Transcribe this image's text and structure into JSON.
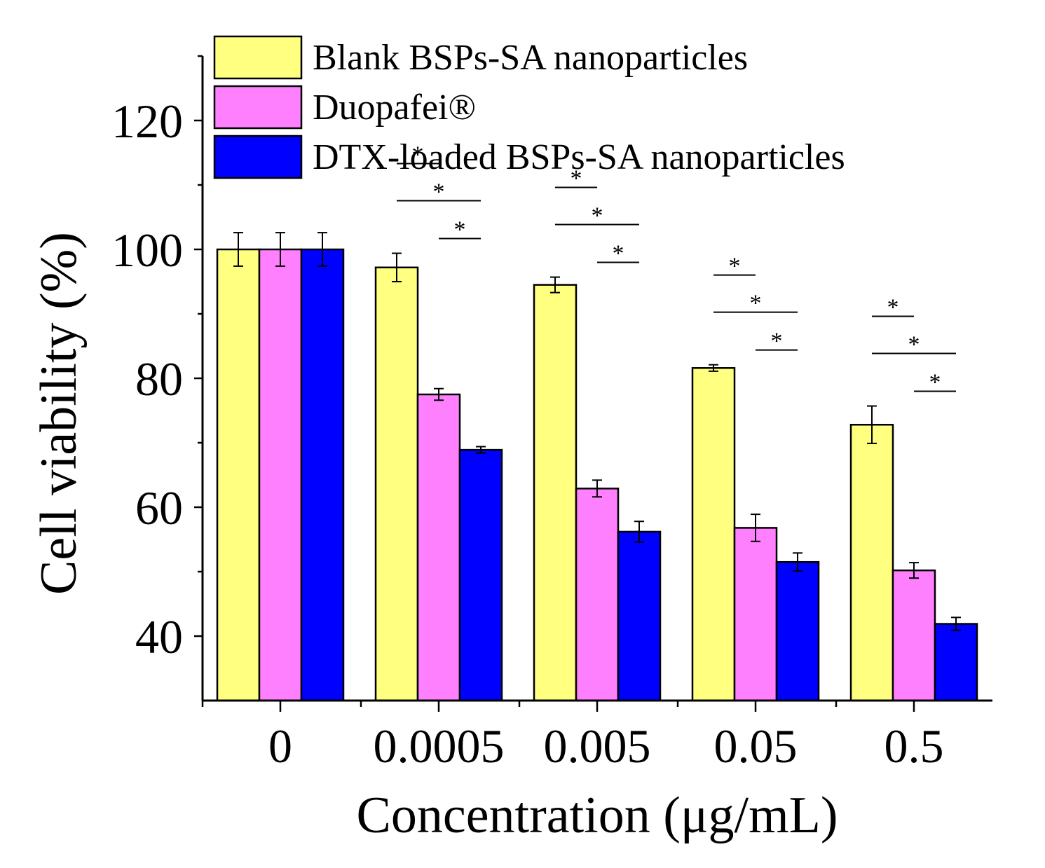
{
  "chart_data": {
    "type": "bar",
    "title": "",
    "xlabel": "Concentration (μg/mL)",
    "ylabel": "Cell viability (%)",
    "ylim": [
      30,
      130
    ],
    "yticks": [
      40,
      60,
      80,
      100,
      120
    ],
    "ytick_labels": [
      "40",
      "60",
      "80",
      "100",
      "120"
    ],
    "grid": false,
    "legend_position": "top",
    "categories": [
      "0",
      "0.0005",
      "0.005",
      "0.05",
      "0.5"
    ],
    "series": [
      {
        "name": "Blank BSPs-SA nanoparticles",
        "color": "#FFFF80",
        "values": [
          100,
          97.2,
          94.5,
          81.6,
          72.8
        ],
        "errors": [
          2.6,
          2.2,
          1.2,
          0.5,
          2.9
        ]
      },
      {
        "name": "Duopafei®",
        "color": "#FF80FF",
        "values": [
          100,
          77.5,
          62.9,
          56.8,
          50.2
        ],
        "errors": [
          2.6,
          0.9,
          1.3,
          2.1,
          1.2
        ]
      },
      {
        "name": "DTX-loaded BSPs-SA nanoparticles",
        "color": "#0000FF",
        "values": [
          100,
          68.9,
          56.2,
          51.5,
          41.9
        ],
        "errors": [
          2.6,
          0.5,
          1.6,
          1.4,
          1.0
        ]
      }
    ],
    "annotations": {
      "marker": "*",
      "significance": [
        {
          "category": "0.0005",
          "comparisons": [
            [
              "Blank BSPs-SA nanoparticles",
              "Duopafei®"
            ],
            [
              "Blank BSPs-SA nanoparticles",
              "DTX-loaded BSPs-SA nanoparticles"
            ],
            [
              "Duopafei®",
              "DTX-loaded BSPs-SA nanoparticles"
            ]
          ]
        },
        {
          "category": "0.005",
          "comparisons": [
            [
              "Blank BSPs-SA nanoparticles",
              "Duopafei®"
            ],
            [
              "Blank BSPs-SA nanoparticles",
              "DTX-loaded BSPs-SA nanoparticles"
            ],
            [
              "Duopafei®",
              "DTX-loaded BSPs-SA nanoparticles"
            ]
          ]
        },
        {
          "category": "0.05",
          "comparisons": [
            [
              "Blank BSPs-SA nanoparticles",
              "Duopafei®"
            ],
            [
              "Blank BSPs-SA nanoparticles",
              "DTX-loaded BSPs-SA nanoparticles"
            ],
            [
              "Duopafei®",
              "DTX-loaded BSPs-SA nanoparticles"
            ]
          ]
        },
        {
          "category": "0.5",
          "comparisons": [
            [
              "Blank BSPs-SA nanoparticles",
              "Duopafei®"
            ],
            [
              "Blank BSPs-SA nanoparticles",
              "DTX-loaded BSPs-SA nanoparticles"
            ],
            [
              "Duopafei®",
              "DTX-loaded BSPs-SA nanoparticles"
            ]
          ]
        }
      ]
    }
  }
}
